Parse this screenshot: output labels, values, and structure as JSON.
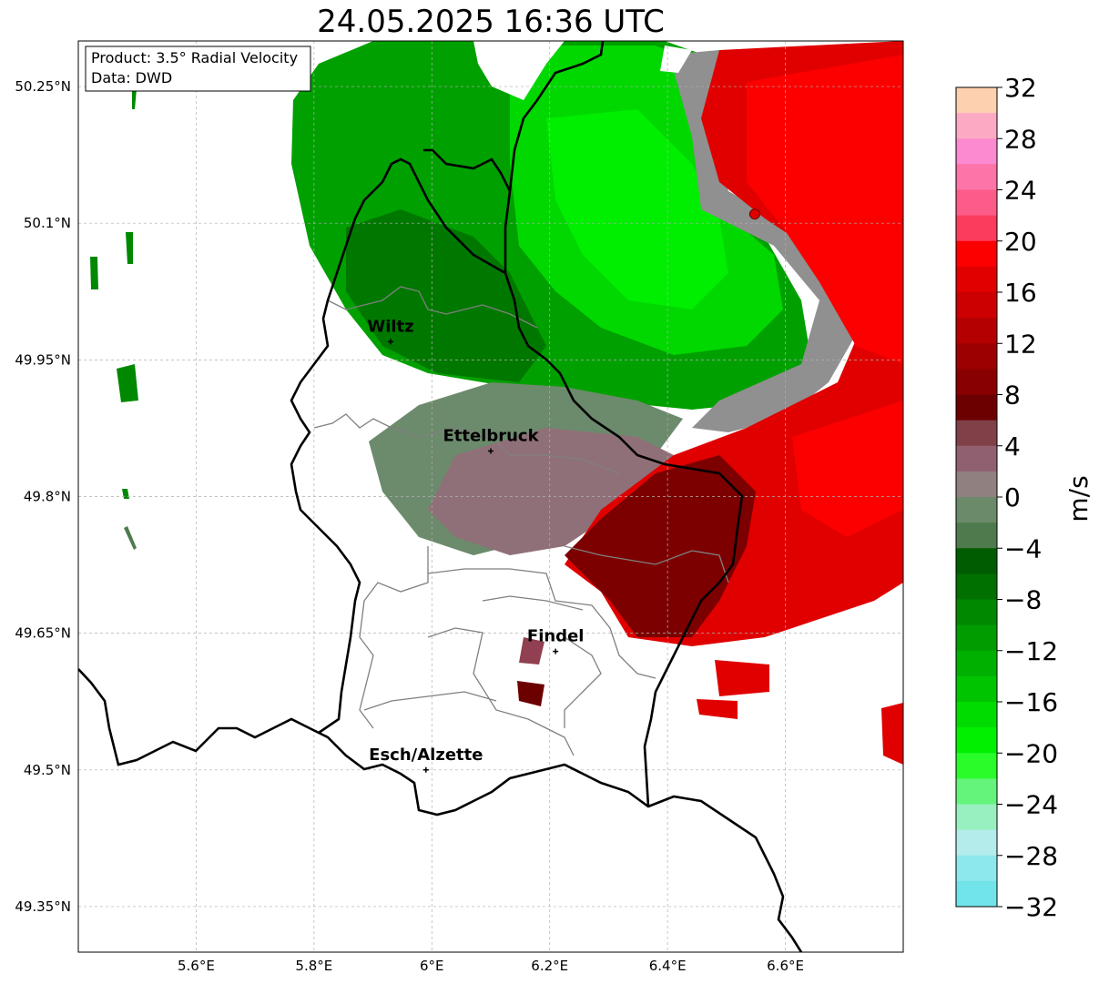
{
  "title": "24.05.2025 16:36 UTC",
  "info_box": {
    "product": "Product: 3.5° Radial Velocity",
    "source": "Data: DWD"
  },
  "map": {
    "lon_range": [
      5.4,
      6.8
    ],
    "lat_range": [
      49.3,
      50.3
    ],
    "lon_ticks": [
      "5.6°E",
      "5.8°E",
      "6°E",
      "6.2°E",
      "6.4°E",
      "6.6°E"
    ],
    "lat_ticks": [
      "50.25°N",
      "50.1°N",
      "49.95°N",
      "49.8°N",
      "49.65°N",
      "49.5°N",
      "49.35°N"
    ],
    "radar_site": {
      "lon": 6.548,
      "lat": 50.11
    },
    "cities": [
      {
        "name": "Wiltz",
        "lon": 5.93,
        "lat": 49.97
      },
      {
        "name": "Ettelbruck",
        "lon": 6.1,
        "lat": 49.85
      },
      {
        "name": "Findel",
        "lon": 6.21,
        "lat": 49.63
      },
      {
        "name": "Esch/Alzette",
        "lon": 5.99,
        "lat": 49.5
      }
    ]
  },
  "colorbar": {
    "label": "m/s",
    "ticks": [
      "32",
      "28",
      "24",
      "20",
      "16",
      "12",
      "8",
      "4",
      "0",
      "−4",
      "−8",
      "−12",
      "−16",
      "−20",
      "−24",
      "−28",
      "−32"
    ],
    "colors": [
      "#fdd0b0",
      "#fcaac4",
      "#fc8ad0",
      "#fc74a8",
      "#fc5c88",
      "#fc3c5c",
      "#fc0000",
      "#e00000",
      "#cc0000",
      "#b40000",
      "#9c0000",
      "#880000",
      "#6c0000",
      "#804048",
      "#906070",
      "#908080",
      "#6a8a6a",
      "#4e7a4e",
      "#005c00",
      "#007000",
      "#008800",
      "#009c00",
      "#00b000",
      "#00c400",
      "#00dc00",
      "#00f000",
      "#2afc2a",
      "#64f47c",
      "#98f0c0",
      "#b4ecec",
      "#8ce8ec",
      "#70e4e8"
    ]
  }
}
